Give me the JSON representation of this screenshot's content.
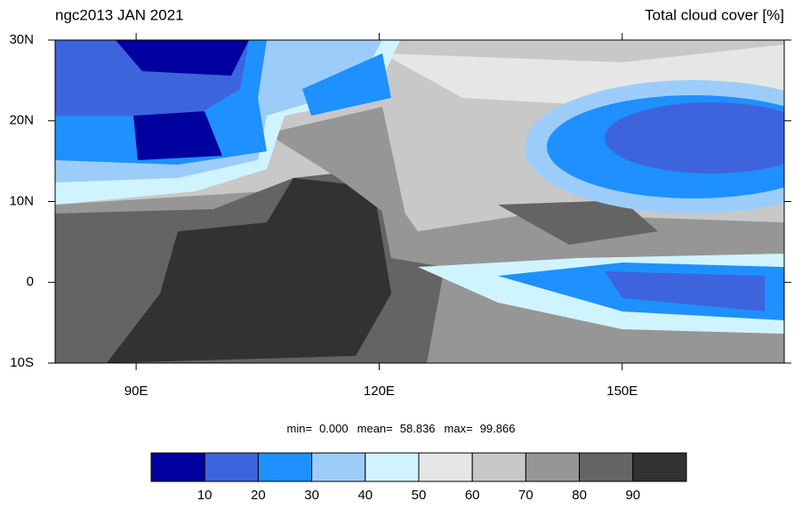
{
  "chart_data": {
    "type": "map",
    "title": "ngc2013 JAN 2021",
    "subtitle": "Total cloud cover [%]",
    "xlim": [
      80,
      170
    ],
    "ylim": [
      -10,
      30
    ],
    "xticks": [
      {
        "value": 90,
        "label": "90E"
      },
      {
        "value": 120,
        "label": "120E"
      },
      {
        "value": 150,
        "label": "150E"
      }
    ],
    "yticks": [
      {
        "value": 30,
        "label": "30N"
      },
      {
        "value": 20,
        "label": "20N"
      },
      {
        "value": 10,
        "label": "10N"
      },
      0,
      {
        "value": -10,
        "label": "10S"
      }
    ],
    "statistics": [
      {
        "name": "min=",
        "value": 0,
        "value_label": "0.000"
      },
      {
        "name": "mean=",
        "value": 58.836
      },
      {
        "name": "max=",
        "value": 99.866
      }
    ],
    "colorbar": {
      "levels": [
        10,
        20,
        30,
        40,
        50,
        60,
        70,
        80,
        90
      ],
      "colors": [
        "#00009e",
        "#3d64dc",
        "#1e90ff",
        "#9ccdfa",
        "#d0f4ff",
        "#e6e6e6",
        "#c8c8c8",
        "#969696",
        "#646464",
        "#323232"
      ]
    }
  }
}
